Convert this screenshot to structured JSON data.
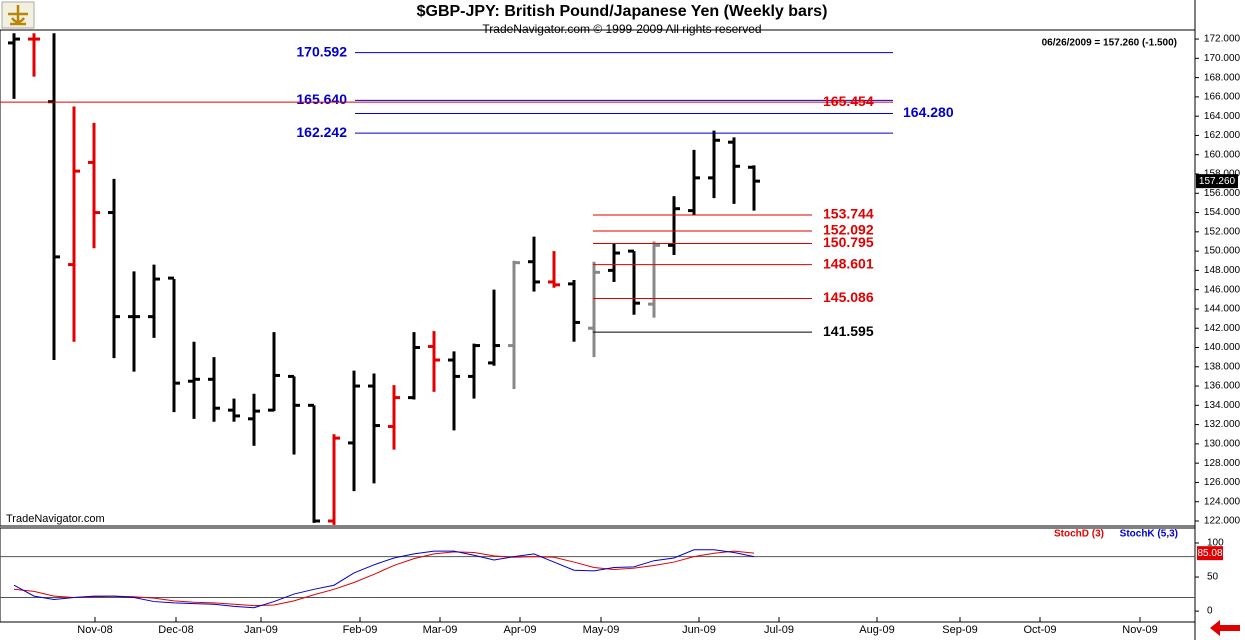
{
  "chart_data": [
    {
      "type": "ohlc",
      "title": "$GBP-JPY:  British Pound/Japanese Yen  (Weekly bars)",
      "subtitle": "TradeNavigator.com © 1999-2009 All rights reserved",
      "watermark": "TradeNavigator.com",
      "last_quote": "06/26/2009 = 157.260 (-1.500)",
      "last_price_label": "157.260",
      "xlim": [
        -0.7,
        59.05
      ],
      "xticks": [
        {
          "value": 4.05,
          "label": "Nov-08"
        },
        {
          "value": 8.1,
          "label": "Dec-08"
        },
        {
          "value": 12.35,
          "label": "Jan-09"
        },
        {
          "value": 17.3,
          "label": "Feb-09"
        },
        {
          "value": 21.3,
          "label": "Mar-09"
        },
        {
          "value": 25.3,
          "label": "Apr-09"
        },
        {
          "value": 29.35,
          "label": "May-09"
        },
        {
          "value": 34.25,
          "label": "Jun-09"
        },
        {
          "value": 38.25,
          "label": "Jul-09"
        },
        {
          "value": 43.15,
          "label": "Aug-09"
        },
        {
          "value": 47.3,
          "label": "Sep-09"
        },
        {
          "value": 51.3,
          "label": "Oct-09"
        },
        {
          "value": 56.3,
          "label": "Nov-09"
        }
      ],
      "ylim": [
        121.48,
        172.94
      ],
      "yticks": [
        {
          "value": 122,
          "label": "122.000"
        },
        {
          "value": 124,
          "label": "124.000"
        },
        {
          "value": 126,
          "label": "126.000"
        },
        {
          "value": 128,
          "label": "128.000"
        },
        {
          "value": 130,
          "label": "130.000"
        },
        {
          "value": 132,
          "label": "132.000"
        },
        {
          "value": 134,
          "label": "134.000"
        },
        {
          "value": 136,
          "label": "136.000"
        },
        {
          "value": 138,
          "label": "138.000"
        },
        {
          "value": 140,
          "label": "140.000"
        },
        {
          "value": 142,
          "label": "142.000"
        },
        {
          "value": 144,
          "label": "144.000"
        },
        {
          "value": 146,
          "label": "146.000"
        },
        {
          "value": 148,
          "label": "148.000"
        },
        {
          "value": 150,
          "label": "150.000"
        },
        {
          "value": 152,
          "label": "152.000"
        },
        {
          "value": 154,
          "label": "154.000"
        },
        {
          "value": 156,
          "label": "156.000"
        },
        {
          "value": 158,
          "label": "158.000"
        },
        {
          "value": 160,
          "label": "160.000"
        },
        {
          "value": 162,
          "label": "162.000"
        },
        {
          "value": 164,
          "label": "164.000"
        },
        {
          "value": 166,
          "label": "166.000"
        },
        {
          "value": 168,
          "label": "168.000"
        },
        {
          "value": 170,
          "label": "170.000"
        },
        {
          "value": 172,
          "label": "172.000"
        }
      ],
      "x": [
        0,
        1,
        2,
        3,
        4,
        5,
        6,
        7,
        8,
        9,
        10,
        11,
        12,
        13,
        14,
        15,
        16,
        17,
        18,
        19,
        20,
        21,
        22,
        23,
        24,
        25,
        26,
        27,
        28,
        29,
        30,
        31,
        32,
        33,
        34,
        35,
        36,
        37
      ],
      "open": [
        171.6,
        172.0,
        165.5,
        148.6,
        159.2,
        154.0,
        143.2,
        143.2,
        147.2,
        136.5,
        136.7,
        133.5,
        132.6,
        133.5,
        137.0,
        134.0,
        122.0,
        130.1,
        136.0,
        131.8,
        134.8,
        140.1,
        138.7,
        137.0,
        138.4,
        140.2,
        148.9,
        146.8,
        146.6,
        142.0,
        148.0,
        150.0,
        144.5,
        150.6,
        154.2,
        157.6,
        161.3,
        158.7
      ],
      "high": [
        172.6,
        172.6,
        172.6,
        165.0,
        163.3,
        157.5,
        147.9,
        148.6,
        147.1,
        140.6,
        139.0,
        134.7,
        135.2,
        141.6,
        137.0,
        134.0,
        131.0,
        137.6,
        137.3,
        136.1,
        141.6,
        141.7,
        139.6,
        140.4,
        146.0,
        149.0,
        151.5,
        150.0,
        147.0,
        148.9,
        150.8,
        150.0,
        151.0,
        155.7,
        160.5,
        162.5,
        161.8,
        158.9
      ],
      "low": [
        165.8,
        168.1,
        138.7,
        140.6,
        150.3,
        138.9,
        137.5,
        141.0,
        133.3,
        132.6,
        132.3,
        132.3,
        129.8,
        133.4,
        128.9,
        121.8,
        121.6,
        125.1,
        125.9,
        129.4,
        134.6,
        135.4,
        131.4,
        134.7,
        138.1,
        135.7,
        145.8,
        146.2,
        140.6,
        139.0,
        146.8,
        143.4,
        143.1,
        149.6,
        153.7,
        155.5,
        154.9,
        154.2
      ],
      "close": [
        172.0,
        172.0,
        149.4,
        158.3,
        154.0,
        143.2,
        143.2,
        147.1,
        136.3,
        136.7,
        133.7,
        132.9,
        133.4,
        137.1,
        134.0,
        122.0,
        130.6,
        136.0,
        131.9,
        134.8,
        140.0,
        138.7,
        137.0,
        140.2,
        140.2,
        148.8,
        146.8,
        146.5,
        142.6,
        147.8,
        149.8,
        144.6,
        150.6,
        154.4,
        157.6,
        161.5,
        158.8,
        157.26
      ],
      "bar_colors": [
        "#000000",
        "#e00000",
        "#000000",
        "#e00000",
        "#e00000",
        "#000000",
        "#000000",
        "#000000",
        "#000000",
        "#000000",
        "#000000",
        "#000000",
        "#000000",
        "#000000",
        "#000000",
        "#000000",
        "#e00000",
        "#000000",
        "#000000",
        "#e00000",
        "#000000",
        "#e00000",
        "#000000",
        "#000000",
        "#000000",
        "#888888",
        "#000000",
        "#e00000",
        "#000000",
        "#888888",
        "#000000",
        "#000000",
        "#888888",
        "#000000",
        "#000000",
        "#000000",
        "#000000",
        "#000000"
      ],
      "projection_levels": [
        {
          "value": 170.592,
          "color": "#0000cc",
          "label_side": "left"
        },
        {
          "value": 165.64,
          "label": "165.640",
          "color": "#0000cc",
          "label_side": "left"
        },
        {
          "value": 165.454,
          "color": "#e00000",
          "label_side": "right"
        },
        {
          "value": 164.28,
          "label": "164.280",
          "color": "#0000cc",
          "label_side": "far-right"
        },
        {
          "value": 162.242,
          "color": "#0000cc",
          "label_side": "left"
        }
      ],
      "retracement_levels": [
        {
          "value": 153.744,
          "color": "#e00000"
        },
        {
          "value": 152.092,
          "color": "#e00000"
        },
        {
          "value": 150.795,
          "color": "#e00000"
        },
        {
          "value": 148.601,
          "color": "#e00000"
        },
        {
          "value": 145.086,
          "color": "#e00000"
        },
        {
          "value": 141.595,
          "color": "#000000"
        }
      ]
    },
    {
      "type": "line",
      "ylim": [
        -16,
        122
      ],
      "yticks": [
        0,
        50,
        100
      ],
      "levels": [
        80,
        20
      ],
      "x": [
        0,
        1,
        2,
        3,
        4,
        5,
        6,
        7,
        8,
        9,
        10,
        11,
        12,
        13,
        14,
        15,
        16,
        17,
        18,
        19,
        20,
        21,
        22,
        23,
        24,
        25,
        26,
        27,
        28,
        29,
        30,
        31,
        32,
        33,
        34,
        35,
        36,
        37
      ],
      "series": [
        {
          "name": "StochD (3)",
          "color": "#e00000",
          "values": [
            32,
            29,
            22,
            20,
            21,
            22,
            21,
            19,
            15,
            13,
            12,
            10,
            8,
            9,
            15,
            24,
            32,
            42,
            54,
            67,
            77,
            84,
            87,
            86,
            81,
            79,
            80,
            79,
            72,
            64,
            61,
            63,
            67,
            72,
            80,
            85,
            88,
            85.08
          ]
        },
        {
          "name": "StochK (5,3)",
          "color": "#0000cc",
          "values": [
            38,
            22,
            17,
            20,
            22,
            22,
            20,
            14,
            12,
            11,
            10,
            7,
            5,
            14,
            25,
            32,
            38,
            56,
            68,
            78,
            84,
            88,
            88,
            82,
            75,
            80,
            84,
            72,
            60,
            59,
            64,
            65,
            74,
            78,
            90,
            90,
            86,
            80
          ]
        }
      ]
    }
  ]
}
